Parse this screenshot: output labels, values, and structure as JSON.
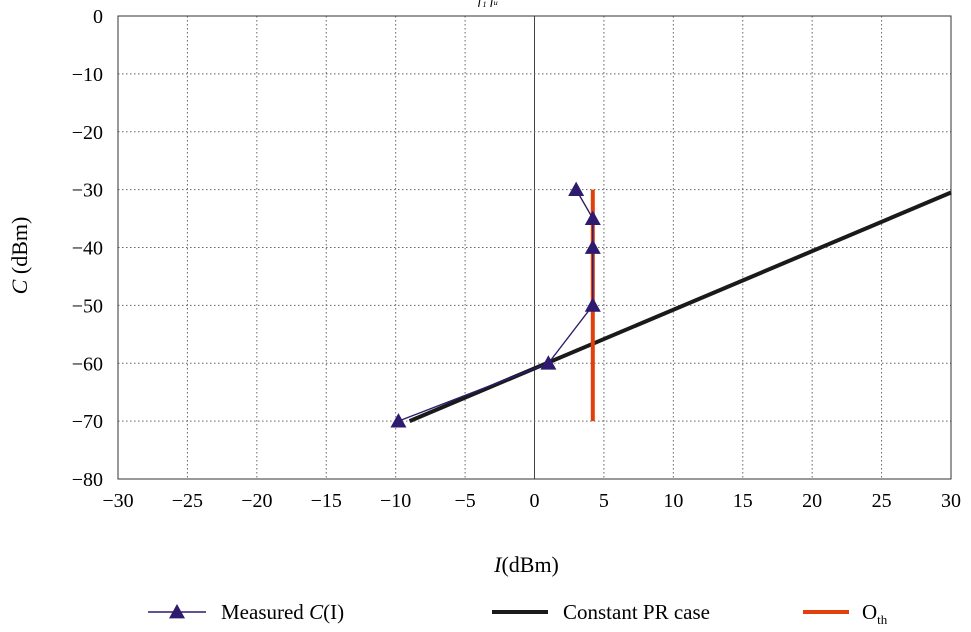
{
  "chart_data": {
    "type": "line",
    "top_note": "f₁ fᵤ",
    "xlabel": {
      "italic": "I",
      "unit": "(dBm)"
    },
    "ylabel": {
      "italic": "C",
      "unit": " (dBm)"
    },
    "xlim": [
      -30,
      30
    ],
    "ylim": [
      -80,
      0
    ],
    "x_ticks": [
      -30,
      -25,
      -20,
      -15,
      -10,
      -5,
      0,
      5,
      10,
      15,
      20,
      25,
      30
    ],
    "y_ticks": [
      0,
      -10,
      -20,
      -30,
      -40,
      -50,
      -60,
      -70,
      -80
    ],
    "x_tick_labels": [
      "−30",
      "−25",
      "−20",
      "−15",
      "−10",
      "−5",
      "0",
      "5",
      "10",
      "15",
      "20",
      "25",
      "30"
    ],
    "y_tick_labels": [
      "0",
      "−10",
      "−20",
      "−30",
      "−40",
      "−50",
      "−60",
      "−70",
      "−80"
    ],
    "grid": true,
    "legend_position": "bottom",
    "series": [
      {
        "name": "Measured C(I)",
        "legend_parts": [
          "Measured ",
          "C",
          "(I)"
        ],
        "color": "#2e1a6e",
        "marker": "triangle",
        "x": [
          -9.8,
          1.0,
          4.2,
          4.2,
          4.2,
          3.0
        ],
        "y": [
          -70,
          -60,
          -50,
          -40,
          -35,
          -30
        ]
      },
      {
        "name": "Constant PR case",
        "color": "#1a1a1a",
        "marker": "none",
        "x": [
          -9,
          30
        ],
        "y": [
          -70,
          -30.5
        ]
      },
      {
        "name": "O_th",
        "legend_parts": [
          "O",
          "th"
        ],
        "color": "#e2400a",
        "marker": "none",
        "x": [
          4.2,
          4.2
        ],
        "y": [
          -70,
          -30
        ]
      }
    ]
  }
}
